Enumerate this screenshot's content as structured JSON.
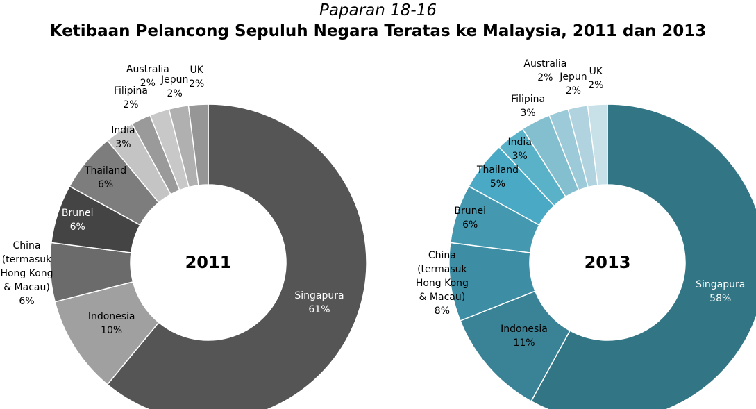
{
  "figure_label": "Paparan 18-16",
  "title": "Ketibaan Pelancong Sepuluh Negara Teratas ke Malaysia, 2011 dan 2013",
  "chart_data": [
    {
      "type": "pie",
      "donut": true,
      "title": "2011",
      "categories": [
        "Singapura",
        "Indonesia",
        "China (termasuk Hong Kong & Macau)",
        "Brunei",
        "Thailand",
        "India",
        "Filipina",
        "Australia",
        "Jepun",
        "UK"
      ],
      "values": [
        61,
        10,
        6,
        6,
        6,
        3,
        2,
        2,
        2,
        2
      ],
      "value_labels": [
        "61%",
        "10%",
        "6%",
        "6%",
        "6%",
        "3%",
        "2%",
        "2%",
        "2%",
        "2%"
      ],
      "colors": [
        "#555555",
        "#a0a0a0",
        "#6b6b6b",
        "#444444",
        "#7d7d7d",
        "#c4c4c4",
        "#9a9a9a",
        "#c8c8c8",
        "#b0b0b0",
        "#969696"
      ]
    },
    {
      "type": "pie",
      "donut": true,
      "title": "2013",
      "categories": [
        "Singapura",
        "Indonesia",
        "China (termasuk Hong Kong & Macau)",
        "Brunei",
        "Thailand",
        "India",
        "Filipina",
        "Australia",
        "Jepun",
        "UK"
      ],
      "values": [
        58,
        11,
        8,
        6,
        5,
        3,
        3,
        2,
        2,
        2
      ],
      "value_labels": [
        "58%",
        "11%",
        "8%",
        "6%",
        "5%",
        "3%",
        "3%",
        "2%",
        "2%",
        "2%"
      ],
      "colors": [
        "#327585",
        "#3a8296",
        "#3d8ea5",
        "#4499b0",
        "#4aa9c4",
        "#5ab2c9",
        "#84bfd0",
        "#9dcad8",
        "#b0d3df",
        "#c8e0e8"
      ]
    }
  ]
}
